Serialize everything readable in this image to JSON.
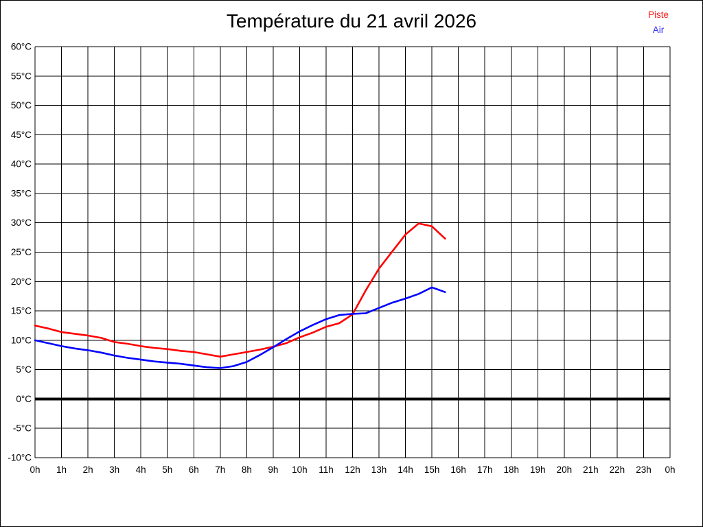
{
  "page": {
    "title": "Température du 21 avril 2026"
  },
  "legend": {
    "items": [
      {
        "label": "Piste",
        "color": "#ff1a1a"
      },
      {
        "label": "Air",
        "color": "#3333ff"
      }
    ]
  },
  "colors": {
    "grid": "#000000",
    "zero_line": "#000000",
    "piste_line": "#ff0000",
    "air_line": "#0000ff",
    "background": "#ffffff"
  },
  "chart_data": {
    "type": "line",
    "title": "Température du 21 avril 2026",
    "xlabel": "",
    "ylabel": "",
    "xlim": [
      0,
      24
    ],
    "ylim": [
      -10,
      60
    ],
    "grid": "on",
    "legend_position": "top-right",
    "zero_line_value": 0,
    "x_ticks": [
      0,
      1,
      2,
      3,
      4,
      5,
      6,
      7,
      8,
      9,
      10,
      11,
      12,
      13,
      14,
      15,
      16,
      17,
      18,
      19,
      20,
      21,
      22,
      23,
      24
    ],
    "x_tick_labels": [
      "0h",
      "1h",
      "2h",
      "3h",
      "4h",
      "5h",
      "6h",
      "7h",
      "8h",
      "9h",
      "10h",
      "11h",
      "12h",
      "13h",
      "14h",
      "15h",
      "16h",
      "17h",
      "18h",
      "19h",
      "20h",
      "21h",
      "22h",
      "23h",
      "0h"
    ],
    "y_ticks": [
      60,
      55,
      50,
      45,
      40,
      35,
      30,
      25,
      20,
      15,
      10,
      5,
      0,
      -5,
      -10
    ],
    "y_tick_labels": [
      "60°C",
      "55°C",
      "50°C",
      "45°C",
      "40°C",
      "35°C",
      "30°C",
      "25°C",
      "20°C",
      "15°C",
      "10°C",
      "5°C",
      "0°C",
      "-5°C",
      "-10°C"
    ],
    "x": [
      0,
      0.5,
      1,
      1.5,
      2,
      2.5,
      3,
      3.5,
      4,
      4.5,
      5,
      5.5,
      6,
      6.5,
      7,
      7.5,
      8,
      8.5,
      9,
      9.5,
      10,
      10.5,
      11,
      11.5,
      12,
      12.5,
      13,
      13.5,
      14,
      14.5,
      15,
      15.5
    ],
    "series": [
      {
        "name": "Piste",
        "color": "#ff0000",
        "values": [
          12.5,
          12.0,
          11.4,
          11.1,
          10.8,
          10.4,
          9.7,
          9.4,
          9.0,
          8.7,
          8.5,
          8.2,
          8.0,
          7.6,
          7.2,
          7.6,
          8.0,
          8.4,
          8.9,
          9.5,
          10.5,
          11.3,
          12.3,
          12.9,
          14.4,
          18.5,
          22.2,
          25.1,
          28.0,
          29.9,
          29.4,
          27.3
        ]
      },
      {
        "name": "Air",
        "color": "#0000ff",
        "values": [
          10.0,
          9.5,
          9.0,
          8.6,
          8.3,
          7.9,
          7.4,
          7.0,
          6.7,
          6.4,
          6.2,
          6.0,
          5.7,
          5.4,
          5.25,
          5.6,
          6.3,
          7.5,
          8.8,
          10.2,
          11.5,
          12.6,
          13.6,
          14.3,
          14.5,
          14.6,
          15.5,
          16.4,
          17.1,
          17.9,
          19.0,
          18.2
        ]
      }
    ]
  }
}
